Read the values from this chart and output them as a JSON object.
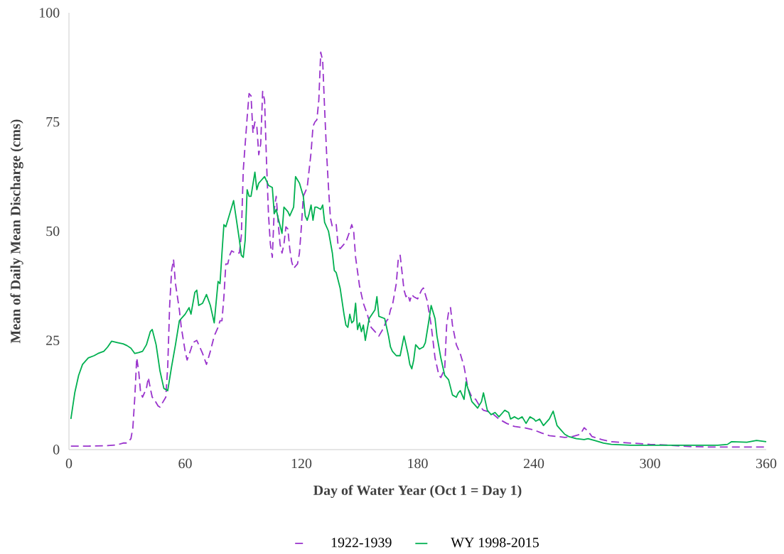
{
  "chart_data": {
    "type": "line",
    "xlabel": "Day of Water Year (Oct 1 = Day 1)",
    "ylabel": "Mean of Daily Mean Discharge (cms)",
    "xlim": [
      0,
      360
    ],
    "ylim": [
      0,
      100
    ],
    "xticks": [
      0,
      60,
      120,
      180,
      240,
      300,
      360
    ],
    "yticks": [
      0,
      25,
      50,
      75,
      100
    ],
    "grid": false,
    "legend": "bottom",
    "marker": "none",
    "series": [
      {
        "name": "1922-1939",
        "color": "#9933cc",
        "line_style": "dashed",
        "x": [
          1,
          10,
          20,
          25,
          28,
          30,
          32,
          33,
          34,
          35,
          36,
          37,
          38,
          40,
          41,
          42,
          43,
          44,
          46,
          47,
          48,
          50,
          51,
          52,
          53,
          54,
          55,
          57,
          58,
          60,
          61,
          63,
          64,
          66,
          67,
          69,
          71,
          73,
          75,
          77,
          78,
          79,
          80,
          81,
          82,
          83,
          84,
          86,
          88,
          89,
          90,
          91,
          92,
          93,
          94,
          95,
          96,
          97,
          98,
          99,
          100,
          101,
          102,
          103,
          104,
          105,
          106,
          107,
          108,
          109,
          110,
          111,
          112,
          113,
          114,
          115,
          116,
          117,
          118,
          119,
          120,
          121,
          122,
          123,
          124,
          125,
          126,
          127,
          128,
          129,
          130,
          131,
          132,
          133,
          134,
          135,
          136,
          138,
          139,
          140,
          142,
          143,
          145,
          146,
          147,
          148,
          150,
          152,
          154,
          156,
          158,
          160,
          162,
          164,
          165,
          166,
          167,
          169,
          170,
          171,
          173,
          174,
          175,
          176,
          177,
          178,
          180,
          182,
          183,
          185,
          187,
          189,
          191,
          192,
          194,
          195,
          196,
          197,
          198,
          200,
          202,
          204,
          206,
          208,
          210,
          212,
          214,
          218,
          222,
          226,
          230,
          235,
          240,
          244,
          248,
          252,
          256,
          260,
          264,
          266,
          268,
          270,
          275,
          280,
          290,
          300,
          310,
          320,
          330,
          340,
          360
        ],
        "values": [
          0.8,
          0.8,
          0.9,
          1.1,
          1.5,
          1.5,
          2.5,
          5,
          12,
          21,
          18,
          13,
          12,
          14,
          16.5,
          14,
          12,
          11.5,
          10,
          9.7,
          10.5,
          12,
          19,
          33,
          41,
          43.5,
          38,
          32,
          28,
          22.5,
          20.5,
          23,
          24.5,
          25,
          24,
          22,
          19.5,
          22.5,
          26,
          28,
          29.5,
          29.5,
          35,
          42.5,
          42.5,
          44.5,
          45.5,
          45,
          45,
          49,
          64,
          70,
          76,
          81.5,
          81,
          72.5,
          75,
          74,
          67.5,
          70,
          82,
          80,
          66,
          54,
          47,
          44,
          55,
          58,
          52,
          47,
          45,
          47,
          51,
          50.5,
          46,
          43,
          41.5,
          42,
          42.5,
          45,
          51,
          58,
          59,
          60,
          64,
          68,
          74,
          75,
          75.5,
          80,
          91,
          89,
          78,
          68,
          60,
          53,
          51,
          51.5,
          46.5,
          46,
          47,
          47.5,
          50,
          51.5,
          50,
          44,
          37.5,
          33.5,
          31,
          28,
          27,
          26,
          27.5,
          29.5,
          30,
          32,
          33,
          38,
          43.5,
          44.5,
          36.5,
          35,
          35.5,
          34,
          35.5,
          35,
          34.5,
          36.5,
          37,
          34,
          28.5,
          21,
          17,
          16.5,
          18.5,
          28.5,
          31.5,
          32.5,
          28.5,
          24,
          22,
          19,
          14,
          12,
          11.5,
          10,
          9,
          8.5,
          7,
          6,
          5.3,
          5,
          4.5,
          3.8,
          3.2,
          3,
          2.8,
          3,
          3.5,
          5,
          4.2,
          3,
          2.3,
          1.8,
          1.5,
          1.2,
          1.0,
          0.7,
          0.6,
          0.6,
          0.6
        ]
      },
      {
        "name": "WY 1998-2015",
        "color": "#00b050",
        "line_style": "solid",
        "x": [
          1,
          3,
          5,
          7,
          10,
          13,
          15,
          18,
          20,
          22,
          25,
          28,
          30,
          32,
          34,
          36,
          38,
          40,
          42,
          43,
          45,
          47,
          49,
          51,
          53,
          55,
          57,
          60,
          62,
          63,
          65,
          66,
          67,
          69,
          71,
          73,
          75,
          77,
          78,
          79,
          80,
          81,
          83,
          85,
          86,
          88,
          89,
          90,
          91,
          92,
          93,
          94,
          96,
          97,
          98,
          99,
          101,
          103,
          105,
          106,
          107,
          108,
          110,
          111,
          113,
          114,
          116,
          117,
          119,
          121,
          122,
          123,
          124,
          125,
          126,
          127,
          128,
          130,
          131,
          132,
          134,
          136,
          137,
          138,
          140,
          142,
          143,
          144,
          145,
          146,
          147,
          148,
          149,
          150,
          151,
          152,
          153,
          155,
          158,
          159,
          160,
          163,
          165,
          166,
          167,
          169,
          171,
          173,
          175,
          176,
          177,
          178,
          179,
          181,
          183,
          184,
          186,
          187,
          189,
          190,
          192,
          194,
          196,
          198,
          200,
          201,
          202,
          204,
          205,
          206,
          208,
          209,
          211,
          213,
          214,
          216,
          218,
          220,
          222,
          224,
          225,
          227,
          228,
          230,
          232,
          234,
          236,
          238,
          240,
          241,
          243,
          245,
          248,
          250,
          252,
          254,
          256,
          258,
          262,
          266,
          268,
          272,
          276,
          280,
          290,
          300,
          320,
          335,
          340,
          342,
          350,
          355,
          360
        ],
        "values": [
          7,
          13,
          17,
          19.5,
          21,
          21.5,
          22,
          22.5,
          23.5,
          24.8,
          24.5,
          24.2,
          23.8,
          23.2,
          22,
          22.2,
          22.5,
          24,
          27,
          27.5,
          24,
          18,
          14,
          13.5,
          19,
          24,
          29.5,
          31,
          32.5,
          31,
          36,
          36.5,
          33,
          33.5,
          35.5,
          33,
          29,
          38.5,
          38,
          45,
          51.5,
          51,
          54,
          57,
          54,
          48,
          44.5,
          44,
          48,
          59.5,
          58,
          58,
          63.5,
          59.5,
          61,
          61.5,
          62.5,
          60.5,
          60,
          54,
          55,
          53,
          49.5,
          55.5,
          54.5,
          53.5,
          55.5,
          62.5,
          61,
          58,
          53.5,
          52.5,
          54,
          56,
          52.5,
          55.5,
          55.5,
          55,
          56,
          52,
          50,
          45,
          41,
          40.5,
          37,
          31,
          28.5,
          28,
          31,
          29,
          29.5,
          33.5,
          27.5,
          29,
          27,
          28.5,
          25,
          30,
          32,
          35,
          30.5,
          30,
          26,
          23.5,
          22.5,
          21.5,
          21.5,
          26,
          22,
          19.5,
          18.5,
          20.5,
          24,
          23,
          23.5,
          24.5,
          30,
          33,
          30,
          26,
          21,
          17,
          16,
          12.5,
          12,
          13,
          13.5,
          11.5,
          15.5,
          14,
          11,
          10.5,
          9.5,
          11,
          13,
          9,
          8,
          8.5,
          7.5,
          8.5,
          9,
          8.5,
          7,
          7.5,
          7,
          7.5,
          6,
          7.5,
          7,
          6.5,
          7,
          5.5,
          7,
          8.8,
          5.5,
          4.5,
          3.5,
          3,
          2.5,
          2.3,
          2.5,
          2,
          1.5,
          1.2,
          1.0,
          1.0,
          1.0,
          1.0,
          1.2,
          1.8,
          1.7,
          2.1,
          1.8
        ]
      }
    ]
  }
}
